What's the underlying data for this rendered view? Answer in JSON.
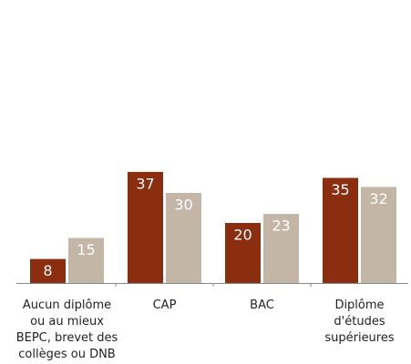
{
  "chart_data": {
    "type": "bar",
    "categories": [
      "Aucun diplôme ou au mieux BEPC, brevet des collèges ou DNB",
      "CAP",
      "BAC",
      "Diplôme d'études supérieures"
    ],
    "series": [
      {
        "color": "#8b2d0f",
        "values": [
          8,
          37,
          20,
          35
        ]
      },
      {
        "color": "#c3b6a6",
        "values": [
          15,
          30,
          23,
          32
        ]
      }
    ],
    "ylim": [
      0,
      90
    ],
    "grid": false
  }
}
